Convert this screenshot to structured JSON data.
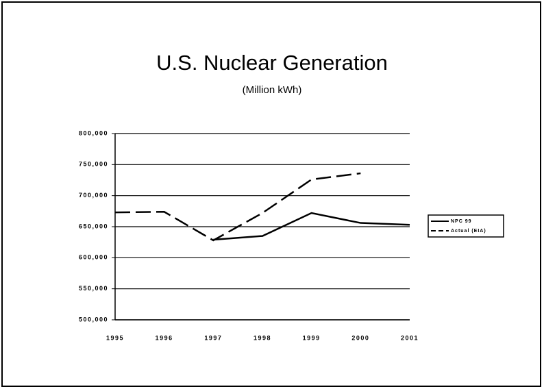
{
  "chart_data": {
    "type": "line",
    "title": "U.S. Nuclear Generation",
    "subtitle": "(Million kWh)",
    "categories": [
      "1995",
      "1996",
      "1997",
      "1998",
      "1999",
      "2000",
      "2001"
    ],
    "series": [
      {
        "name": "NPC 99",
        "color": "#000000",
        "dash": "solid",
        "values": [
          null,
          null,
          629000,
          635000,
          672000,
          656000,
          653000
        ]
      },
      {
        "name": "Actual (EIA)",
        "color": "#000000",
        "dash": "dashed",
        "values": [
          673000,
          674000,
          628000,
          672000,
          726000,
          736000,
          null
        ]
      }
    ],
    "ylim": [
      500000,
      800000
    ],
    "yticks": [
      {
        "value": 500000,
        "label": "500,000"
      },
      {
        "value": 550000,
        "label": "550,000"
      },
      {
        "value": 600000,
        "label": "600,000"
      },
      {
        "value": 650000,
        "label": "650,000"
      },
      {
        "value": 700000,
        "label": "700,000"
      },
      {
        "value": 750000,
        "label": "750,000"
      },
      {
        "value": 800000,
        "label": "800,000"
      }
    ],
    "grid": true,
    "legend": "right"
  }
}
